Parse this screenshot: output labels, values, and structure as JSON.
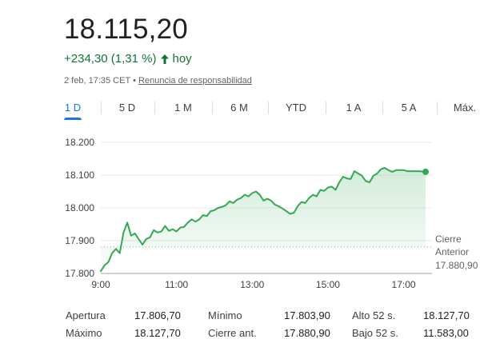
{
  "quote": {
    "price": "18.115,20",
    "change": "+234,30 (1,31 %)",
    "change_period": "hoy",
    "timestamp": "2 feb, 17:35 CET",
    "separator": "•",
    "disclaimer": "Renuncia de responsabilidad",
    "up_color": "#137333"
  },
  "tabs": [
    {
      "label": "1 D",
      "active": true
    },
    {
      "label": "5 D",
      "active": false
    },
    {
      "label": "1 M",
      "active": false
    },
    {
      "label": "6 M",
      "active": false
    },
    {
      "label": "YTD",
      "active": false
    },
    {
      "label": "1 A",
      "active": false
    },
    {
      "label": "5 A",
      "active": false
    },
    {
      "label": "Máx.",
      "active": false
    }
  ],
  "chart_data": {
    "type": "area",
    "y_ticks": [
      "18.200",
      "18.100",
      "18.000",
      "17.900",
      "17.800"
    ],
    "y_tick_values": [
      18200,
      18100,
      18000,
      17900,
      17800
    ],
    "x_ticks": [
      "9:00",
      "11:00",
      "13:00",
      "15:00",
      "17:00"
    ],
    "x_tick_values": [
      9,
      11,
      13,
      15,
      17
    ],
    "xlim": [
      9,
      17.58
    ],
    "ylim": [
      17800,
      18200
    ],
    "previous_close_label_1": "Cierre",
    "previous_close_label_2": "Anterior",
    "previous_close_label_3": "17.880,90",
    "previous_close": 17880.9,
    "line_color": "#34a853",
    "series": [
      {
        "x": [
          9.0,
          9.1,
          9.2,
          9.3,
          9.4,
          9.5,
          9.6,
          9.7,
          9.8,
          9.9,
          10.0,
          10.1,
          10.2,
          10.3,
          10.4,
          10.5,
          10.6,
          10.7,
          10.8,
          10.9,
          11.0,
          11.1,
          11.2,
          11.3,
          11.4,
          11.5,
          11.6,
          11.7,
          11.8,
          11.9,
          12.0,
          12.1,
          12.2,
          12.3,
          12.4,
          12.5,
          12.6,
          12.7,
          12.8,
          12.9,
          13.0,
          13.1,
          13.2,
          13.3,
          13.4,
          13.5,
          13.6,
          13.7,
          13.8,
          13.9,
          14.0,
          14.1,
          14.2,
          14.3,
          14.4,
          14.5,
          14.6,
          14.7,
          14.8,
          14.9,
          15.0,
          15.1,
          15.2,
          15.3,
          15.4,
          15.5,
          15.6,
          15.7,
          15.8,
          15.9,
          16.0,
          16.1,
          16.2,
          16.3,
          16.4,
          16.5,
          16.6,
          16.7,
          16.8,
          16.9,
          17.0,
          17.1,
          17.2,
          17.3,
          17.4,
          17.58
        ],
        "values": [
          17807,
          17825,
          17835,
          17862,
          17875,
          17862,
          17925,
          17955,
          17915,
          17922,
          17905,
          17888,
          17905,
          17910,
          17932,
          17925,
          17928,
          17945,
          17930,
          17935,
          17928,
          17940,
          17942,
          17955,
          17965,
          17958,
          17965,
          17978,
          17975,
          17990,
          17993,
          18000,
          18003,
          18008,
          18020,
          18015,
          18025,
          18030,
          18040,
          18035,
          18045,
          18050,
          18040,
          18022,
          18028,
          18022,
          18010,
          18005,
          17998,
          17990,
          17982,
          17985,
          18005,
          18018,
          18015,
          18030,
          18040,
          18035,
          18055,
          18052,
          18062,
          18065,
          18055,
          18078,
          18095,
          18090,
          18088,
          18112,
          18105,
          18098,
          18082,
          18078,
          18098,
          18105,
          18118,
          18122,
          18115,
          18110,
          18115,
          18115,
          18115,
          18112,
          18112,
          18112,
          18112,
          18110
        ]
      }
    ]
  },
  "stats": [
    {
      "label": "Apertura",
      "value": "17.806,70"
    },
    {
      "label": "Mínimo",
      "value": "17.803,90"
    },
    {
      "label": "Alto 52 s.",
      "value": "18.127,70"
    },
    {
      "label": "Máximo",
      "value": "18.127,70"
    },
    {
      "label": "Cierre ant.",
      "value": "17.880,90"
    },
    {
      "label": "Bajo 52 s.",
      "value": "11.583,00"
    }
  ]
}
